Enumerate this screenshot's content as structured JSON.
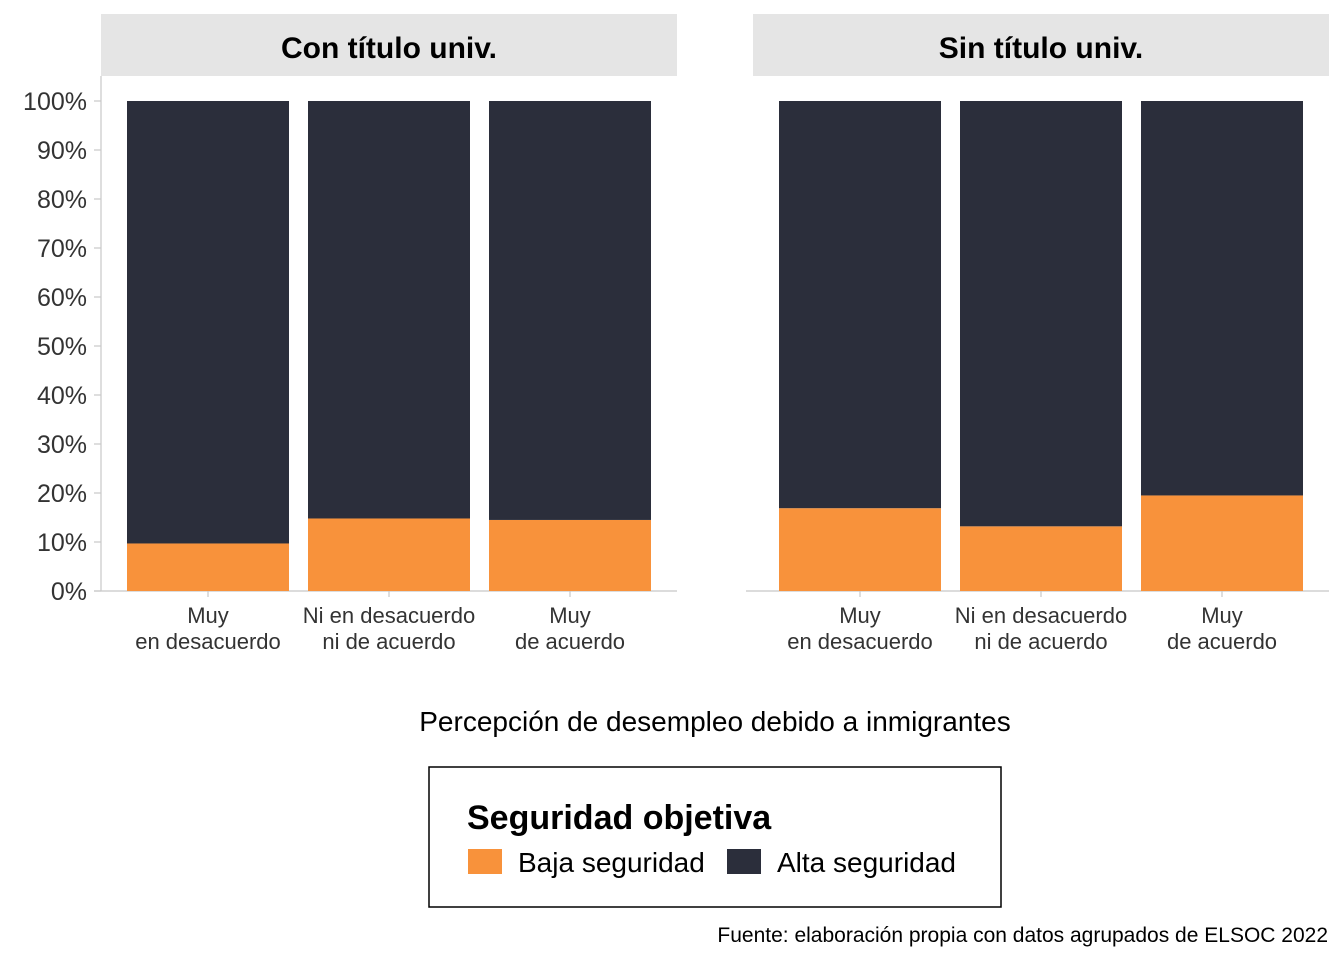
{
  "chart_data": {
    "type": "bar",
    "stacked": "percent",
    "xlabel": "Percepción de desempleo debido a inmigrantes",
    "ylabel": "",
    "ylim": [
      0,
      1
    ],
    "yticks": [
      "0%",
      "10%",
      "20%",
      "30%",
      "40%",
      "50%",
      "60%",
      "70%",
      "80%",
      "90%",
      "100%"
    ],
    "grid": false,
    "legend_placement": "bottom",
    "legend": {
      "title": "Seguridad objetiva",
      "items": [
        {
          "label": "Baja seguridad",
          "color": "#f8923b"
        },
        {
          "label": "Alta seguridad",
          "color": "#2b2e3b"
        }
      ]
    },
    "categories": [
      [
        "Muy",
        "en desacuerdo"
      ],
      [
        "Ni en desacuerdo",
        "ni de acuerdo"
      ],
      [
        "Muy",
        "de acuerdo"
      ]
    ],
    "panels": [
      {
        "title": "Con título univ.",
        "series": [
          {
            "name": "Baja seguridad",
            "values": [
              0.097,
              0.148,
              0.145
            ]
          },
          {
            "name": "Alta seguridad",
            "values": [
              0.903,
              0.852,
              0.855
            ]
          }
        ]
      },
      {
        "title": "Sin título univ.",
        "series": [
          {
            "name": "Baja seguridad",
            "values": [
              0.169,
              0.132,
              0.195
            ]
          },
          {
            "name": "Alta seguridad",
            "values": [
              0.831,
              0.868,
              0.805
            ]
          }
        ]
      }
    ],
    "caption": "Fuente: elaboración propia con datos agrupados de ELSOC 2022"
  }
}
